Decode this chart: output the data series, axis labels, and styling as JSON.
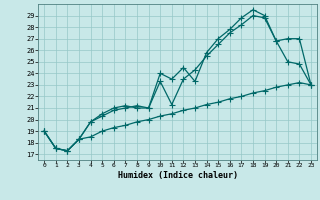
{
  "xlabel": "Humidex (Indice chaleur)",
  "bg_color": "#c8e8e8",
  "grid_color": "#96c8c8",
  "line_color": "#006868",
  "xlim": [
    -0.5,
    23.5
  ],
  "ylim": [
    16.5,
    30.0
  ],
  "yticks": [
    17,
    18,
    19,
    20,
    21,
    22,
    23,
    24,
    25,
    26,
    27,
    28,
    29
  ],
  "xticks": [
    0,
    1,
    2,
    3,
    4,
    5,
    6,
    7,
    8,
    9,
    10,
    11,
    12,
    13,
    14,
    15,
    16,
    17,
    18,
    19,
    20,
    21,
    22,
    23
  ],
  "line1_x": [
    0,
    1,
    2,
    3,
    4,
    5,
    6,
    7,
    8,
    9,
    10,
    11,
    12,
    13,
    14,
    15,
    16,
    17,
    18,
    19,
    20,
    21,
    22,
    23
  ],
  "line1_y": [
    19.0,
    17.5,
    17.3,
    18.3,
    18.5,
    19.0,
    19.3,
    19.5,
    19.8,
    20.0,
    20.3,
    20.5,
    20.8,
    21.0,
    21.3,
    21.5,
    21.8,
    22.0,
    22.3,
    22.5,
    22.8,
    23.0,
    23.2,
    23.0
  ],
  "line2_x": [
    0,
    1,
    2,
    3,
    4,
    5,
    6,
    7,
    8,
    9,
    10,
    11,
    12,
    13,
    14,
    15,
    16,
    17,
    18,
    19,
    20,
    21,
    22,
    23
  ],
  "line2_y": [
    19.0,
    17.5,
    17.3,
    18.3,
    19.8,
    20.3,
    20.8,
    21.0,
    21.2,
    21.0,
    23.3,
    21.3,
    23.5,
    24.3,
    25.5,
    26.5,
    27.5,
    28.2,
    29.0,
    28.8,
    26.8,
    25.0,
    24.8,
    23.0
  ],
  "line3_x": [
    0,
    1,
    2,
    3,
    4,
    5,
    6,
    7,
    8,
    9,
    10,
    11,
    12,
    13,
    14,
    15,
    16,
    17,
    18,
    19,
    20,
    21,
    22,
    23
  ],
  "line3_y": [
    19.0,
    17.5,
    17.3,
    18.3,
    19.8,
    20.5,
    21.0,
    21.2,
    21.0,
    21.0,
    24.0,
    23.5,
    24.5,
    23.3,
    25.8,
    27.0,
    27.8,
    28.8,
    29.5,
    29.0,
    26.8,
    27.0,
    27.0,
    23.0
  ]
}
